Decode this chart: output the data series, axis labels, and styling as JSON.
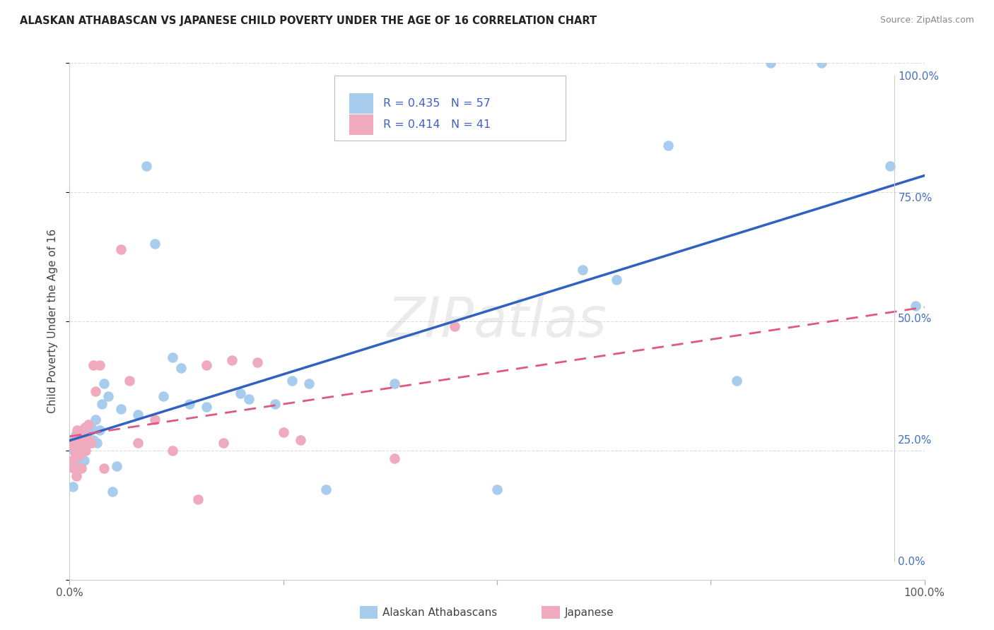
{
  "title": "ALASKAN ATHABASCAN VS JAPANESE CHILD POVERTY UNDER THE AGE OF 16 CORRELATION CHART",
  "source": "Source: ZipAtlas.com",
  "ylabel": "Child Poverty Under the Age of 16",
  "legend_label1": "Alaskan Athabascans",
  "legend_label2": "Japanese",
  "legend_r1": "R = 0.435",
  "legend_n1": "N = 57",
  "legend_r2": "R = 0.414",
  "legend_n2": "N = 41",
  "color_blue_scatter": "#A8CCEE",
  "color_pink_scatter": "#F0AABE",
  "color_blue_line": "#3060C0",
  "color_pink_line": "#E05880",
  "color_rn": "#4060C8",
  "watermark": "ZIPatlas",
  "grid_color": "#DDDDDD",
  "bg_color": "#FFFFFF",
  "blue_x": [
    0.003,
    0.004,
    0.005,
    0.005,
    0.006,
    0.006,
    0.007,
    0.007,
    0.008,
    0.009,
    0.01,
    0.01,
    0.011,
    0.012,
    0.013,
    0.014,
    0.015,
    0.016,
    0.017,
    0.018,
    0.02,
    0.022,
    0.025,
    0.028,
    0.03,
    0.032,
    0.035,
    0.038,
    0.04,
    0.045,
    0.05,
    0.055,
    0.06,
    0.08,
    0.09,
    0.1,
    0.11,
    0.12,
    0.13,
    0.14,
    0.16,
    0.2,
    0.21,
    0.24,
    0.26,
    0.28,
    0.3,
    0.38,
    0.5,
    0.6,
    0.64,
    0.7,
    0.78,
    0.82,
    0.88,
    0.96,
    0.99
  ],
  "blue_y": [
    0.22,
    0.18,
    0.25,
    0.27,
    0.23,
    0.26,
    0.24,
    0.28,
    0.26,
    0.22,
    0.25,
    0.28,
    0.265,
    0.245,
    0.22,
    0.265,
    0.275,
    0.255,
    0.23,
    0.265,
    0.28,
    0.265,
    0.295,
    0.27,
    0.31,
    0.265,
    0.29,
    0.34,
    0.38,
    0.355,
    0.17,
    0.22,
    0.33,
    0.32,
    0.8,
    0.65,
    0.355,
    0.43,
    0.41,
    0.34,
    0.335,
    0.36,
    0.35,
    0.34,
    0.385,
    0.38,
    0.175,
    0.38,
    0.175,
    0.6,
    0.58,
    0.84,
    0.385,
    1.0,
    1.0,
    0.8,
    0.53
  ],
  "pink_x": [
    0.003,
    0.004,
    0.005,
    0.006,
    0.007,
    0.007,
    0.008,
    0.009,
    0.009,
    0.01,
    0.01,
    0.011,
    0.012,
    0.013,
    0.014,
    0.015,
    0.016,
    0.017,
    0.018,
    0.019,
    0.02,
    0.022,
    0.025,
    0.028,
    0.03,
    0.035,
    0.04,
    0.06,
    0.07,
    0.08,
    0.1,
    0.12,
    0.15,
    0.16,
    0.18,
    0.19,
    0.22,
    0.25,
    0.27,
    0.38,
    0.45
  ],
  "pink_y": [
    0.26,
    0.23,
    0.215,
    0.25,
    0.24,
    0.27,
    0.2,
    0.26,
    0.29,
    0.24,
    0.275,
    0.265,
    0.255,
    0.245,
    0.215,
    0.28,
    0.27,
    0.275,
    0.295,
    0.25,
    0.275,
    0.3,
    0.265,
    0.415,
    0.365,
    0.415,
    0.215,
    0.64,
    0.385,
    0.265,
    0.31,
    0.25,
    0.155,
    0.415,
    0.265,
    0.425,
    0.42,
    0.285,
    0.27,
    0.235,
    0.49
  ]
}
